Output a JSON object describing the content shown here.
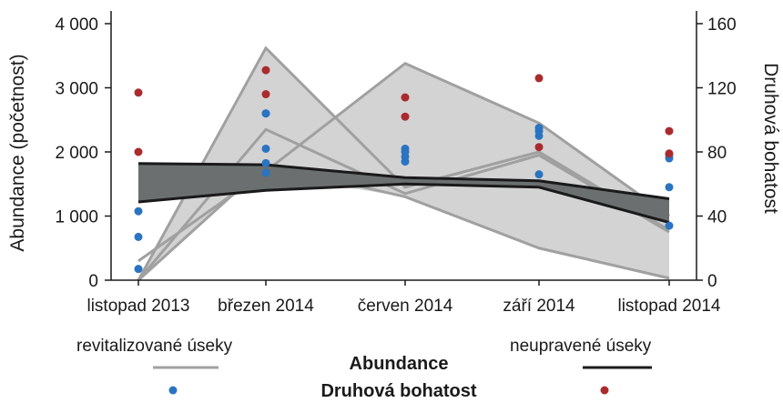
{
  "chart_data": {
    "type": "area",
    "categories": [
      "listopad 2013",
      "březen 2014",
      "červen 2014",
      "září 2014",
      "listopad 2014"
    ],
    "y_left": {
      "label": "Abundance (početnost)",
      "ticks": [
        0,
        1000,
        2000,
        3000,
        4000
      ],
      "tick_labels": [
        "0",
        "1 000",
        "2 000",
        "3 000",
        "4 000"
      ],
      "range": [
        0,
        4000
      ]
    },
    "y_right": {
      "label": "Druhová bohatost",
      "ticks": [
        0,
        40,
        80,
        120,
        160
      ],
      "tick_labels": [
        "0",
        "40",
        "80",
        "120",
        "160"
      ],
      "range": [
        0,
        160
      ]
    },
    "abundance_ranges": [
      {
        "name": "revitalizované úseky",
        "color": "#a0a0a0",
        "fill": "#d3d3d3",
        "min": [
          0,
          1800,
          1300,
          500,
          30
        ],
        "max": [
          0,
          3620,
          1450,
          2000,
          780
        ],
        "mid": [
          0,
          2350,
          1350,
          1950,
          750
        ]
      },
      {
        "name": "revitalizované úseky",
        "color": "#a0a0a0",
        "fill": "#d3d3d3",
        "min": [
          300,
          1650,
          1300,
          500,
          30
        ],
        "max": [
          300,
          1700,
          3380,
          2450,
          1000
        ],
        "mid": [
          300,
          1700,
          3380,
          2450,
          1000
        ]
      },
      {
        "name": "neupravené úseky",
        "color": "#1a1a1a",
        "fill": "#6b6f6f",
        "min": [
          1220,
          1400,
          1500,
          1450,
          900
        ],
        "max": [
          1820,
          1800,
          1600,
          1550,
          1270
        ]
      }
    ],
    "richness_points": [
      {
        "name": "revitalizované úseky",
        "color": "#2a74c1",
        "values": [
          [
            7,
            27,
            43
          ],
          [
            67,
            73,
            104,
            82,
            104
          ],
          [
            74,
            77,
            80,
            82
          ],
          [
            66,
            90,
            93,
            95
          ],
          [
            34,
            58,
            76,
            78
          ]
        ]
      },
      {
        "name": "neupravené úseky",
        "color": "#aa2b2e",
        "values": [
          [
            80,
            117
          ],
          [
            116,
            131
          ],
          [
            102,
            114
          ],
          [
            83,
            126
          ],
          [
            79,
            93
          ]
        ]
      }
    ],
    "legend": {
      "left_label": "revitalizované úseky",
      "right_label": "neupravené úseky",
      "row1_label": "Abundance",
      "row2_label": "Druhová bohatost"
    }
  }
}
